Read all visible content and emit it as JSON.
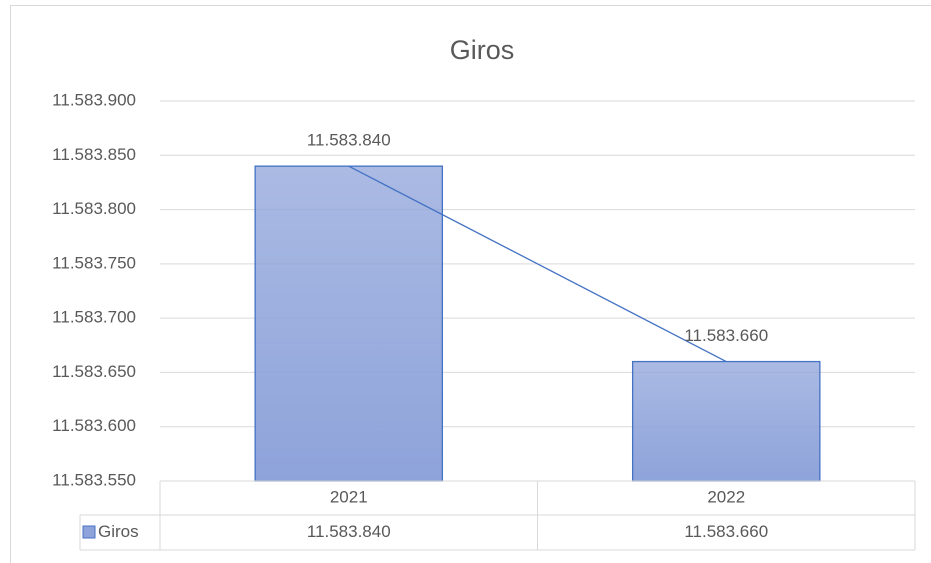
{
  "chart_data": {
    "type": "bar",
    "title": "Giros",
    "categories": [
      "2021",
      "2022"
    ],
    "series": [
      {
        "name": "Giros",
        "color": "#8ea3da",
        "border": "#4472c4",
        "line_color": "#4472c4",
        "values": [
          11583840,
          11583660
        ],
        "value_labels": [
          "11.583.840",
          "11.583.660"
        ]
      }
    ],
    "ylim": [
      11583550,
      11583900
    ],
    "yticks": [
      {
        "value": 11583550,
        "label": "11.583.550"
      },
      {
        "value": 11583600,
        "label": "11.583.600"
      },
      {
        "value": 11583650,
        "label": "11.583.650"
      },
      {
        "value": 11583700,
        "label": "11.583.700"
      },
      {
        "value": 11583750,
        "label": "11.583.750"
      },
      {
        "value": 11583800,
        "label": "11.583.800"
      },
      {
        "value": 11583850,
        "label": "11.583.850"
      },
      {
        "value": 11583900,
        "label": "11.583.900"
      }
    ],
    "grid": true,
    "data_table": true
  }
}
